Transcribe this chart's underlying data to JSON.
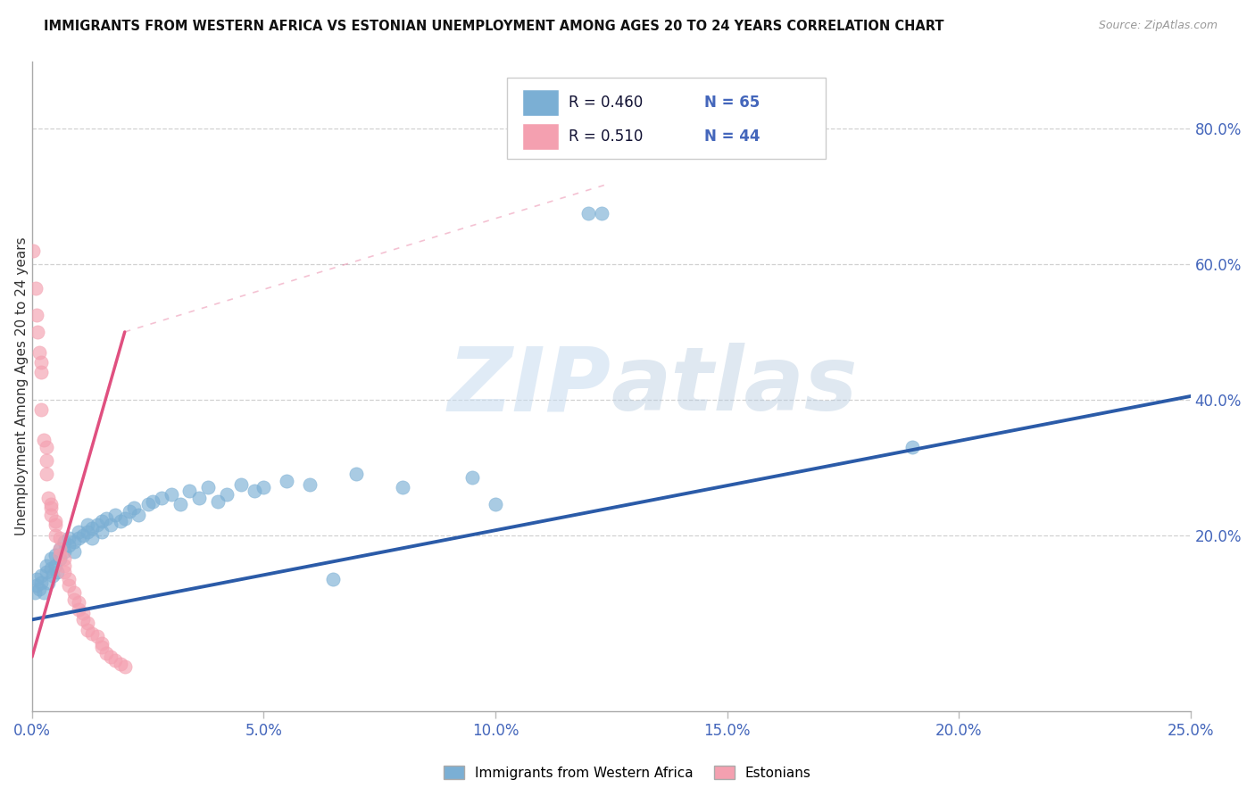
{
  "title": "IMMIGRANTS FROM WESTERN AFRICA VS ESTONIAN UNEMPLOYMENT AMONG AGES 20 TO 24 YEARS CORRELATION CHART",
  "source": "Source: ZipAtlas.com",
  "ylabel": "Unemployment Among Ages 20 to 24 years",
  "right_yticks": [
    "80.0%",
    "60.0%",
    "40.0%",
    "20.0%"
  ],
  "right_ytick_vals": [
    0.8,
    0.6,
    0.4,
    0.2
  ],
  "legend_blue_R": "R = 0.460",
  "legend_blue_N": "N = 65",
  "legend_pink_R": "R = 0.510",
  "legend_pink_N": "N = 44",
  "legend_label_blue": "Immigrants from Western Africa",
  "legend_label_pink": "Estonians",
  "blue_color": "#7BAFD4",
  "pink_color": "#F4A0B0",
  "blue_line_color": "#2B5BA8",
  "pink_line_color": "#E05080",
  "watermark_zip": "ZIP",
  "watermark_atlas": "atlas",
  "blue_dots": [
    [
      0.0005,
      0.115
    ],
    [
      0.001,
      0.125
    ],
    [
      0.001,
      0.135
    ],
    [
      0.0015,
      0.12
    ],
    [
      0.002,
      0.13
    ],
    [
      0.002,
      0.14
    ],
    [
      0.0025,
      0.115
    ],
    [
      0.003,
      0.145
    ],
    [
      0.003,
      0.155
    ],
    [
      0.0035,
      0.13
    ],
    [
      0.004,
      0.15
    ],
    [
      0.004,
      0.165
    ],
    [
      0.0045,
      0.14
    ],
    [
      0.005,
      0.155
    ],
    [
      0.005,
      0.17
    ],
    [
      0.0055,
      0.145
    ],
    [
      0.006,
      0.165
    ],
    [
      0.006,
      0.18
    ],
    [
      0.007,
      0.175
    ],
    [
      0.007,
      0.19
    ],
    [
      0.008,
      0.185
    ],
    [
      0.008,
      0.195
    ],
    [
      0.009,
      0.19
    ],
    [
      0.009,
      0.175
    ],
    [
      0.01,
      0.195
    ],
    [
      0.01,
      0.205
    ],
    [
      0.011,
      0.2
    ],
    [
      0.012,
      0.205
    ],
    [
      0.012,
      0.215
    ],
    [
      0.013,
      0.21
    ],
    [
      0.013,
      0.195
    ],
    [
      0.014,
      0.215
    ],
    [
      0.015,
      0.22
    ],
    [
      0.015,
      0.205
    ],
    [
      0.016,
      0.225
    ],
    [
      0.017,
      0.215
    ],
    [
      0.018,
      0.23
    ],
    [
      0.019,
      0.22
    ],
    [
      0.02,
      0.225
    ],
    [
      0.021,
      0.235
    ],
    [
      0.022,
      0.24
    ],
    [
      0.023,
      0.23
    ],
    [
      0.025,
      0.245
    ],
    [
      0.026,
      0.25
    ],
    [
      0.028,
      0.255
    ],
    [
      0.03,
      0.26
    ],
    [
      0.032,
      0.245
    ],
    [
      0.034,
      0.265
    ],
    [
      0.036,
      0.255
    ],
    [
      0.038,
      0.27
    ],
    [
      0.04,
      0.25
    ],
    [
      0.042,
      0.26
    ],
    [
      0.045,
      0.275
    ],
    [
      0.048,
      0.265
    ],
    [
      0.05,
      0.27
    ],
    [
      0.055,
      0.28
    ],
    [
      0.06,
      0.275
    ],
    [
      0.065,
      0.135
    ],
    [
      0.07,
      0.29
    ],
    [
      0.08,
      0.27
    ],
    [
      0.095,
      0.285
    ],
    [
      0.1,
      0.245
    ],
    [
      0.12,
      0.675
    ],
    [
      0.123,
      0.675
    ],
    [
      0.19,
      0.33
    ]
  ],
  "pink_dots": [
    [
      0.0003,
      0.62
    ],
    [
      0.0008,
      0.565
    ],
    [
      0.001,
      0.525
    ],
    [
      0.0012,
      0.5
    ],
    [
      0.0015,
      0.47
    ],
    [
      0.002,
      0.455
    ],
    [
      0.002,
      0.44
    ],
    [
      0.002,
      0.385
    ],
    [
      0.0025,
      0.34
    ],
    [
      0.003,
      0.33
    ],
    [
      0.003,
      0.31
    ],
    [
      0.003,
      0.29
    ],
    [
      0.0035,
      0.255
    ],
    [
      0.004,
      0.245
    ],
    [
      0.004,
      0.24
    ],
    [
      0.004,
      0.23
    ],
    [
      0.005,
      0.22
    ],
    [
      0.005,
      0.215
    ],
    [
      0.005,
      0.2
    ],
    [
      0.006,
      0.195
    ],
    [
      0.006,
      0.18
    ],
    [
      0.006,
      0.17
    ],
    [
      0.007,
      0.165
    ],
    [
      0.007,
      0.155
    ],
    [
      0.007,
      0.145
    ],
    [
      0.008,
      0.135
    ],
    [
      0.008,
      0.125
    ],
    [
      0.009,
      0.115
    ],
    [
      0.009,
      0.105
    ],
    [
      0.01,
      0.1
    ],
    [
      0.01,
      0.09
    ],
    [
      0.011,
      0.085
    ],
    [
      0.011,
      0.075
    ],
    [
      0.012,
      0.07
    ],
    [
      0.012,
      0.06
    ],
    [
      0.013,
      0.055
    ],
    [
      0.014,
      0.05
    ],
    [
      0.015,
      0.04
    ],
    [
      0.015,
      0.035
    ],
    [
      0.016,
      0.025
    ],
    [
      0.017,
      0.02
    ],
    [
      0.018,
      0.015
    ],
    [
      0.019,
      0.01
    ],
    [
      0.02,
      0.005
    ]
  ],
  "blue_line": [
    [
      0.0,
      0.075
    ],
    [
      0.25,
      0.405
    ]
  ],
  "pink_line_solid": [
    [
      0.0,
      0.02
    ],
    [
      0.02,
      0.5
    ]
  ],
  "pink_line_dashed_ext": [
    [
      0.02,
      0.5
    ],
    [
      0.125,
      0.72
    ]
  ],
  "xlim": [
    0.0,
    0.25
  ],
  "ylim": [
    -0.06,
    0.9
  ],
  "xtick_positions": [
    0.0,
    0.05,
    0.1,
    0.15,
    0.2,
    0.25
  ],
  "xtick_labels": [
    "0.0%",
    "5.0%",
    "10.0%",
    "15.0%",
    "20.0%",
    "25.0%"
  ]
}
